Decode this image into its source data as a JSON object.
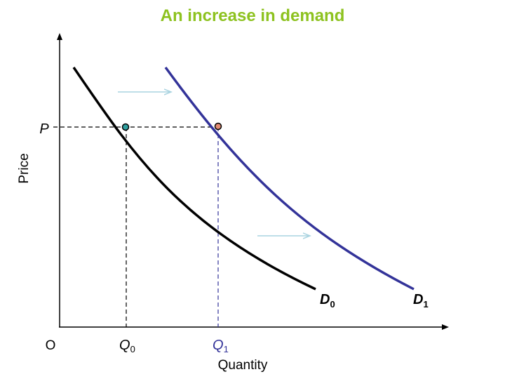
{
  "title": "An increase in demand",
  "axes": {
    "x_label": "Quantity",
    "y_label": "Price",
    "origin_label": "O"
  },
  "price_marker": {
    "label": "P"
  },
  "quantity_markers": [
    {
      "label": "Q",
      "subscript": "0"
    },
    {
      "label": "Q",
      "subscript": "1"
    }
  ],
  "curves": [
    {
      "label": "D",
      "subscript": "0"
    },
    {
      "label": "D",
      "subscript": "1"
    }
  ],
  "colors": {
    "title": "#8dc21f",
    "d0_curve": "#000000",
    "d1_curve": "#333399",
    "shift_arrow": "#a9d3e0",
    "point_d0": "#2f9f9f",
    "point_d1": "#e28b73",
    "guide_lines": "#000000"
  }
}
